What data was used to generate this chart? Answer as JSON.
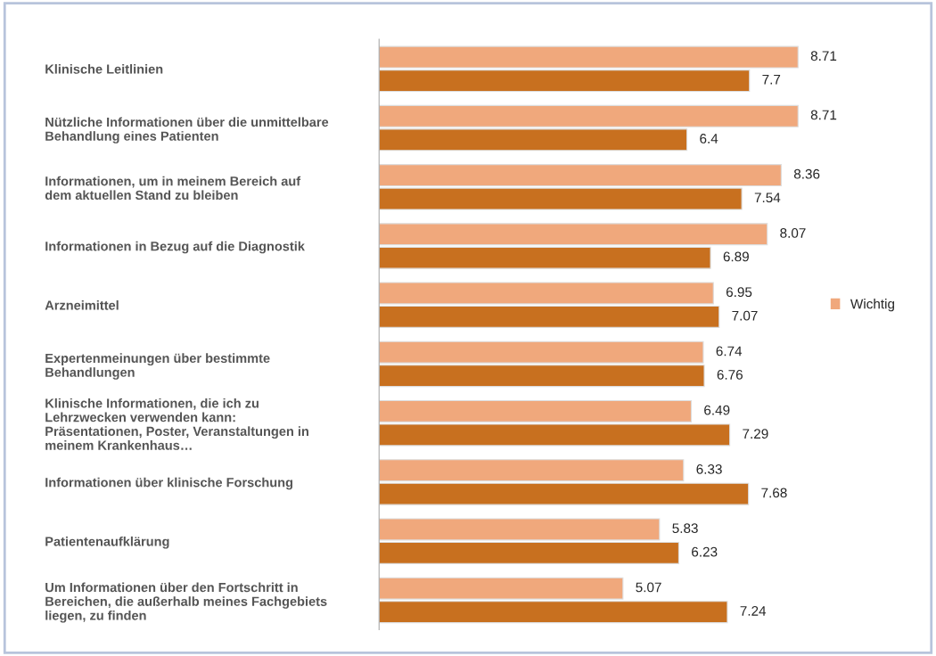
{
  "chart_data": {
    "type": "bar",
    "orientation": "horizontal",
    "categories": [
      "Klinische Leitlinien",
      "Nützliche Informationen über die unmittelbare\nBehandlung eines Patienten",
      "Informationen, um in meinem Bereich auf\ndem aktuellen Stand zu bleiben",
      "Informationen in Bezug auf die Diagnostik",
      "Arzneimittel",
      "Expertenmeinungen über bestimmte\nBehandlungen",
      "Klinische Informationen, die ich zu\nLehrzwecken verwenden kann:\nPräsentationen, Poster, Veranstaltungen in\nmeinem Krankenhaus…",
      "Informationen über klinische Forschung",
      "Patientenaufklärung",
      "Um Informationen über den Fortschritt in\nBereichen, die außerhalb meines Fachgebiets\nliegen, zu finden"
    ],
    "series": [
      {
        "name": "Wichtig",
        "color": "#f0a87c",
        "values": [
          8.71,
          8.71,
          8.36,
          8.07,
          6.95,
          6.74,
          6.49,
          6.33,
          5.83,
          5.07
        ]
      },
      {
        "color": "#c8701f",
        "values": [
          7.7,
          6.4,
          7.54,
          6.89,
          7.07,
          6.76,
          7.29,
          7.68,
          6.23,
          7.24
        ]
      }
    ],
    "data_labels": true,
    "legend": "right",
    "tick_labels": "y",
    "grid": false
  }
}
